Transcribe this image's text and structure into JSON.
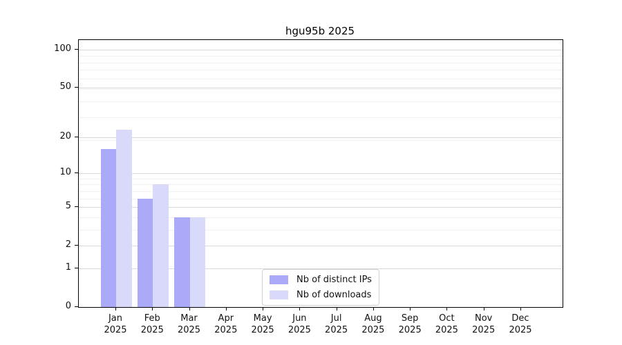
{
  "chart_data": {
    "type": "bar",
    "title": "hgu95b 2025",
    "categories": [
      {
        "month": "Jan",
        "year": "2025"
      },
      {
        "month": "Feb",
        "year": "2025"
      },
      {
        "month": "Mar",
        "year": "2025"
      },
      {
        "month": "Apr",
        "year": "2025"
      },
      {
        "month": "May",
        "year": "2025"
      },
      {
        "month": "Jun",
        "year": "2025"
      },
      {
        "month": "Jul",
        "year": "2025"
      },
      {
        "month": "Aug",
        "year": "2025"
      },
      {
        "month": "Sep",
        "year": "2025"
      },
      {
        "month": "Oct",
        "year": "2025"
      },
      {
        "month": "Nov",
        "year": "2025"
      },
      {
        "month": "Dec",
        "year": "2025"
      }
    ],
    "series": [
      {
        "name": "Nb of distinct IPs",
        "color": "#aaaaf8",
        "values": [
          16,
          6,
          4,
          0,
          0,
          0,
          0,
          0,
          0,
          0,
          0,
          0
        ]
      },
      {
        "name": "Nb of downloads",
        "color": "#d9d9f9",
        "values": [
          23,
          8,
          4,
          0,
          0,
          0,
          0,
          0,
          0,
          0,
          0,
          0
        ]
      }
    ],
    "xlabel": "",
    "ylabel": "",
    "y_axis": {
      "ticks": [
        0,
        1,
        2,
        5,
        10,
        20,
        50,
        100
      ],
      "scale": "log10(value+1)",
      "range": [
        0,
        118
      ]
    },
    "grid": {
      "horizontal": true,
      "minor_values": [
        3,
        4,
        6,
        7,
        8,
        9,
        19,
        29,
        39,
        49,
        59,
        69,
        79,
        89,
        99
      ]
    },
    "legend": {
      "position": "bottom-center-inside"
    }
  },
  "colors": {
    "distinct_ips": "#aaaaf8",
    "downloads": "#d9d9f9",
    "grid_major": "#d9d9d9",
    "grid_minor": "#f0f0f0",
    "axis": "#000000",
    "background": "#ffffff"
  }
}
